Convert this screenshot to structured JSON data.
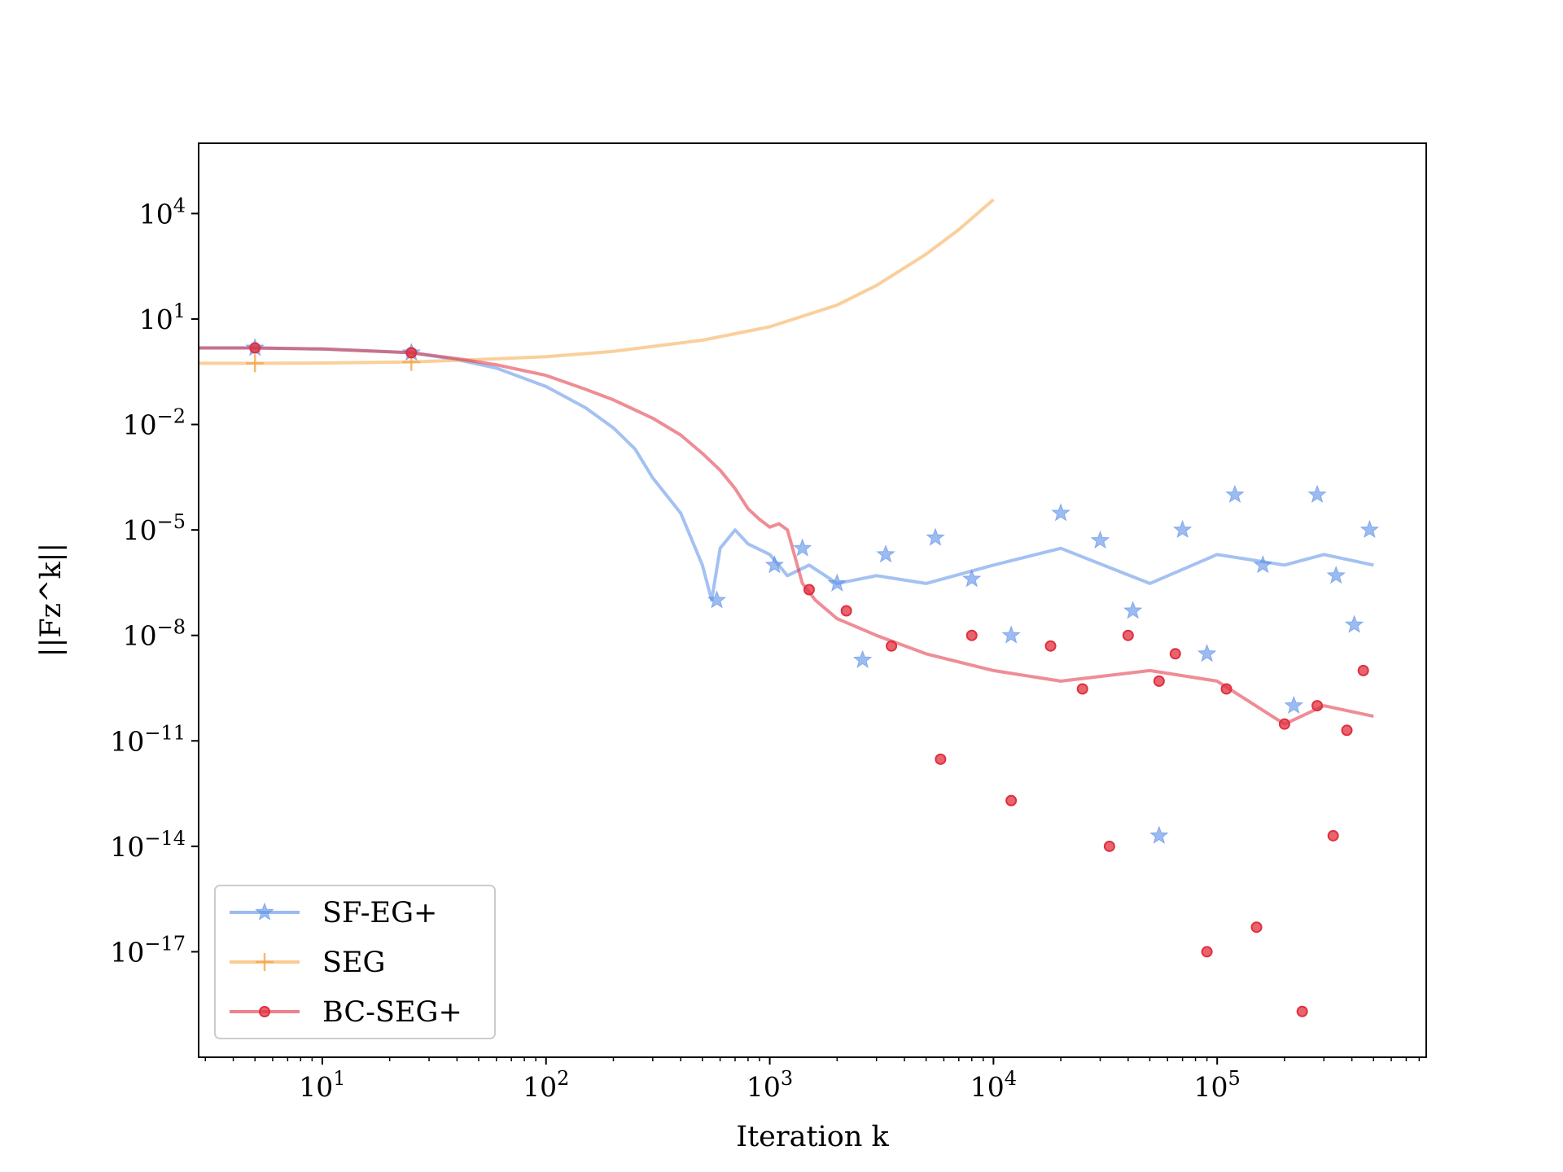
{
  "chart_data": {
    "type": "line",
    "title": "",
    "xlabel": "Iteration k",
    "ylabel": "||Fz^k||",
    "x_scale": "log",
    "y_scale": "log",
    "xlim": [
      2.8,
      860000
    ],
    "ylim": [
      1e-20,
      1000000.0
    ],
    "grid": false,
    "legend_position": "lower-left",
    "x_ticks": [
      {
        "value": 10,
        "base": "10",
        "exp": "1"
      },
      {
        "value": 100,
        "base": "10",
        "exp": "2"
      },
      {
        "value": 1000,
        "base": "10",
        "exp": "3"
      },
      {
        "value": 10000,
        "base": "10",
        "exp": "4"
      },
      {
        "value": 100000,
        "base": "10",
        "exp": "5"
      }
    ],
    "y_ticks": [
      {
        "value": 10000.0,
        "base": "10",
        "exp": "4"
      },
      {
        "value": 10.0,
        "base": "10",
        "exp": "1"
      },
      {
        "value": 0.01,
        "base": "10",
        "exp": "−2"
      },
      {
        "value": 1e-05,
        "base": "10",
        "exp": "−5"
      },
      {
        "value": 1e-08,
        "base": "10",
        "exp": "−8"
      },
      {
        "value": 1e-11,
        "base": "10",
        "exp": "−11"
      },
      {
        "value": 1e-14,
        "base": "10",
        "exp": "−14"
      },
      {
        "value": 1e-17,
        "base": "10",
        "exp": "−17"
      }
    ],
    "series": [
      {
        "name": "SF-EG+",
        "color": "#5a8ee8",
        "marker": "star",
        "x": [
          2.8,
          5,
          10,
          25,
          40,
          60,
          100,
          150,
          200,
          250,
          300,
          400,
          500,
          550,
          600,
          700,
          800,
          1000,
          1200,
          1500,
          2000,
          3000,
          5000,
          10000,
          20000,
          50000,
          100000,
          200000,
          300000,
          500000
        ],
        "y": [
          1.5,
          1.5,
          1.4,
          1.1,
          0.7,
          0.4,
          0.12,
          0.03,
          0.008,
          0.002,
          0.0003,
          3e-05,
          1e-06,
          1e-07,
          3e-06,
          1e-05,
          4e-06,
          2e-06,
          5e-07,
          1e-06,
          3e-07,
          5e-07,
          3e-07,
          1e-06,
          3e-06,
          3e-07,
          2e-06,
          1e-06,
          2e-06,
          1e-06
        ],
        "markers": [
          {
            "x": 5,
            "y": 1.5
          },
          {
            "x": 25,
            "y": 1.1
          },
          {
            "x": 580,
            "y": 1e-07
          },
          {
            "x": 1050,
            "y": 1e-06
          },
          {
            "x": 1400,
            "y": 3e-06
          },
          {
            "x": 2000,
            "y": 3e-07
          },
          {
            "x": 2600,
            "y": 2e-09
          },
          {
            "x": 3300,
            "y": 2e-06
          },
          {
            "x": 5500,
            "y": 6e-06
          },
          {
            "x": 8000,
            "y": 4e-07
          },
          {
            "x": 12000,
            "y": 1e-08
          },
          {
            "x": 20000,
            "y": 3e-05
          },
          {
            "x": 30000,
            "y": 5e-06
          },
          {
            "x": 42000,
            "y": 5e-08
          },
          {
            "x": 55000,
            "y": 2e-14
          },
          {
            "x": 70000,
            "y": 1e-05
          },
          {
            "x": 90000,
            "y": 3e-09
          },
          {
            "x": 120000,
            "y": 0.0001
          },
          {
            "x": 160000,
            "y": 1e-06
          },
          {
            "x": 220000,
            "y": 1e-10
          },
          {
            "x": 280000,
            "y": 0.0001
          },
          {
            "x": 340000,
            "y": 5e-07
          },
          {
            "x": 410000,
            "y": 2e-08
          },
          {
            "x": 480000,
            "y": 1e-05
          }
        ]
      },
      {
        "name": "SEG",
        "color": "#f5a74a",
        "marker": "plus",
        "x": [
          2.8,
          5,
          10,
          25,
          50,
          100,
          200,
          500,
          1000,
          2000,
          3000,
          5000,
          7000,
          10000
        ],
        "y": [
          0.55,
          0.55,
          0.56,
          0.6,
          0.7,
          0.85,
          1.2,
          2.5,
          6,
          25,
          90,
          700,
          3500,
          25000
        ],
        "markers": [
          {
            "x": 5,
            "y": 0.55
          },
          {
            "x": 25,
            "y": 0.6
          }
        ]
      },
      {
        "name": "BC-SEG+",
        "color": "#e0303f",
        "marker": "circle",
        "x": [
          2.8,
          5,
          10,
          25,
          40,
          60,
          100,
          150,
          200,
          300,
          400,
          500,
          600,
          700,
          800,
          900,
          1000,
          1100,
          1200,
          1400,
          1600,
          2000,
          3000,
          5000,
          10000,
          20000,
          50000,
          100000,
          200000,
          300000,
          500000
        ],
        "y": [
          1.5,
          1.5,
          1.4,
          1.1,
          0.75,
          0.5,
          0.25,
          0.1,
          0.05,
          0.015,
          0.005,
          0.0015,
          0.0005,
          0.00015,
          4e-05,
          2e-05,
          1.2e-05,
          1.5e-05,
          1e-05,
          3e-07,
          1e-07,
          3e-08,
          1e-08,
          3e-09,
          1e-09,
          5e-10,
          1e-09,
          5e-10,
          3e-11,
          1e-10,
          5e-11
        ],
        "markers": [
          {
            "x": 5,
            "y": 1.5
          },
          {
            "x": 25,
            "y": 1.1
          },
          {
            "x": 1500,
            "y": 2e-07
          },
          {
            "x": 2200,
            "y": 5e-08
          },
          {
            "x": 3500,
            "y": 5e-09
          },
          {
            "x": 5800,
            "y": 3e-12
          },
          {
            "x": 8000,
            "y": 1e-08
          },
          {
            "x": 12000,
            "y": 2e-13
          },
          {
            "x": 18000,
            "y": 5e-09
          },
          {
            "x": 25000,
            "y": 3e-10
          },
          {
            "x": 33000,
            "y": 1e-14
          },
          {
            "x": 40000,
            "y": 1e-08
          },
          {
            "x": 55000,
            "y": 5e-10
          },
          {
            "x": 65000,
            "y": 3e-09
          },
          {
            "x": 90000,
            "y": 1e-17
          },
          {
            "x": 110000,
            "y": 3e-10
          },
          {
            "x": 150000,
            "y": 5e-17
          },
          {
            "x": 200000,
            "y": 3e-11
          },
          {
            "x": 240000,
            "y": 2e-19
          },
          {
            "x": 280000,
            "y": 1e-10
          },
          {
            "x": 330000,
            "y": 2e-14
          },
          {
            "x": 380000,
            "y": 2e-11
          },
          {
            "x": 450000,
            "y": 1e-09
          }
        ]
      }
    ]
  }
}
